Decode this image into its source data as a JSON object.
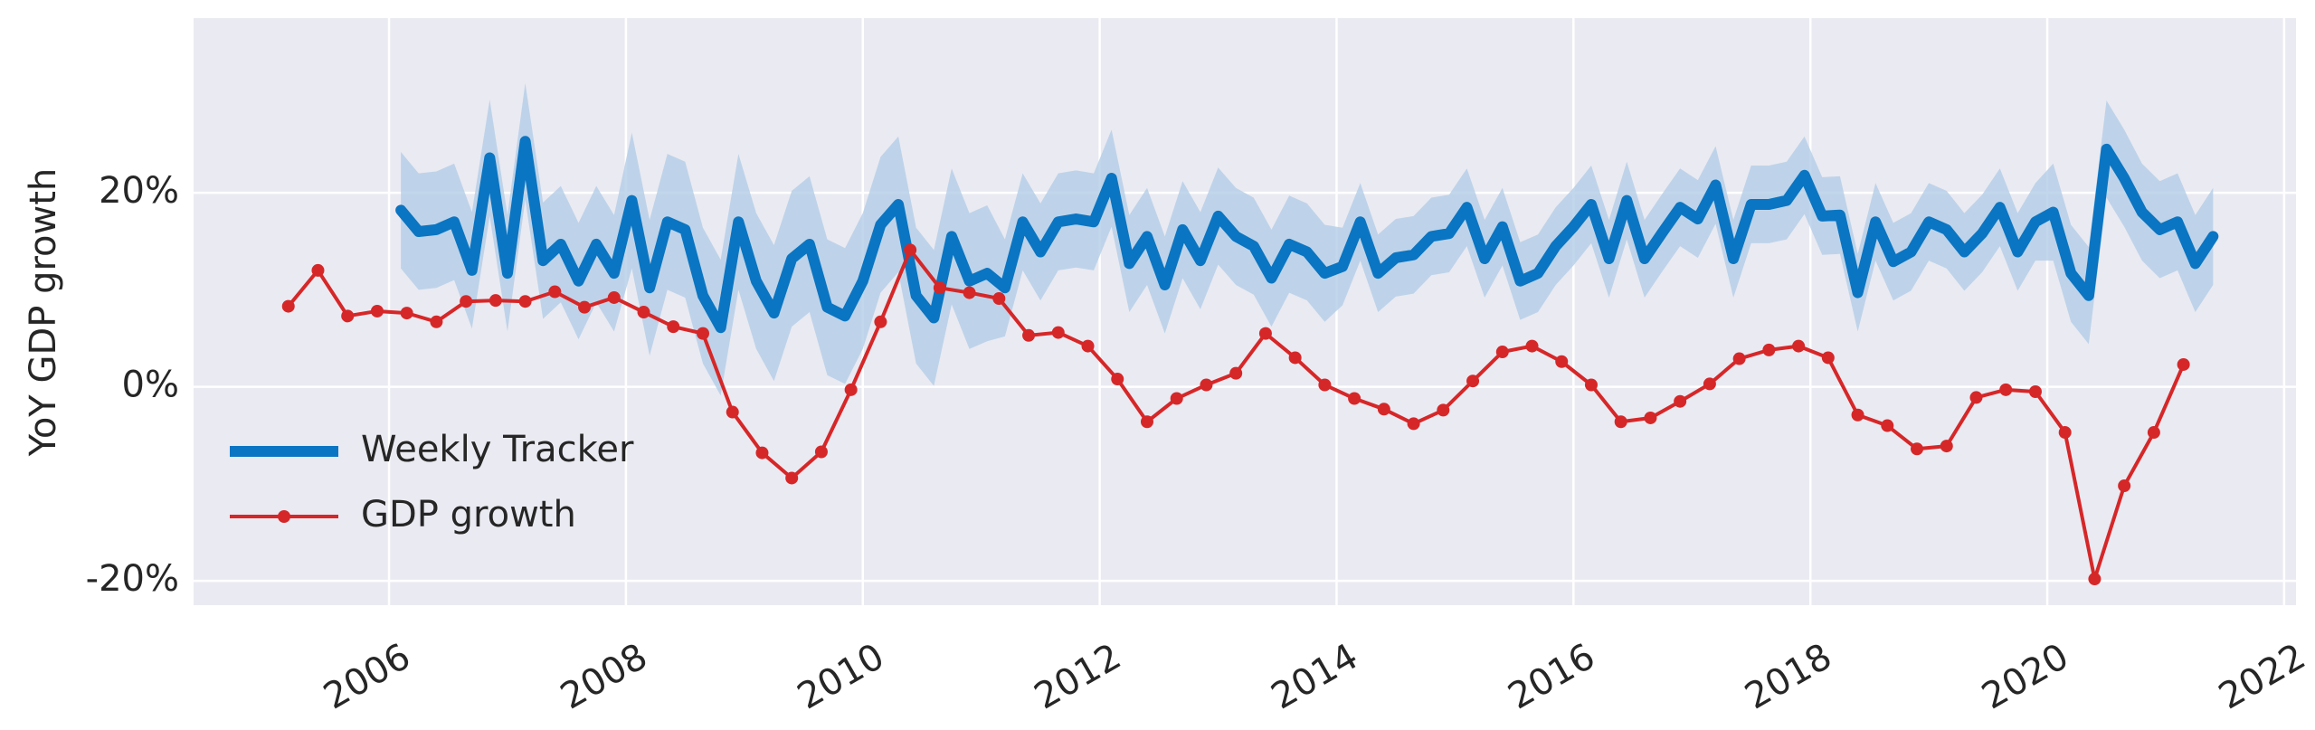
{
  "chart_data": {
    "type": "line",
    "y_label": "YoY GDP growth",
    "xlim": [
      2004.35,
      2022.1
    ],
    "ylim": [
      -22.5,
      38
    ],
    "xticks": [
      2006,
      2008,
      2010,
      2012,
      2014,
      2016,
      2018,
      2020,
      2022
    ],
    "yticks": [
      {
        "value": -20,
        "label": "-20%"
      },
      {
        "value": 0,
        "label": "0%"
      },
      {
        "value": 20,
        "label": "20%"
      }
    ],
    "grid": true,
    "legend": "lower left",
    "series": [
      {
        "name": "Weekly Tracker",
        "color": "#0a75c2",
        "band_color": "#b3cde6",
        "x": [
          2006.1,
          2006.25,
          2006.4,
          2006.55,
          2006.7,
          2006.85,
          2007.0,
          2007.15,
          2007.3,
          2007.45,
          2007.6,
          2007.75,
          2007.9,
          2008.05,
          2008.2,
          2008.35,
          2008.5,
          2008.65,
          2008.8,
          2008.95,
          2009.1,
          2009.25,
          2009.4,
          2009.55,
          2009.7,
          2009.85,
          2010.0,
          2010.15,
          2010.3,
          2010.45,
          2010.6,
          2010.75,
          2010.9,
          2011.05,
          2011.2,
          2011.35,
          2011.5,
          2011.65,
          2011.8,
          2011.95,
          2012.1,
          2012.25,
          2012.4,
          2012.55,
          2012.7,
          2012.85,
          2013.0,
          2013.15,
          2013.3,
          2013.45,
          2013.6,
          2013.75,
          2013.9,
          2014.05,
          2014.2,
          2014.35,
          2014.5,
          2014.65,
          2014.8,
          2014.95,
          2015.1,
          2015.25,
          2015.4,
          2015.55,
          2015.7,
          2015.85,
          2016.0,
          2016.15,
          2016.3,
          2016.45,
          2016.6,
          2016.75,
          2016.9,
          2017.05,
          2017.2,
          2017.35,
          2017.5,
          2017.65,
          2017.8,
          2017.95,
          2018.1,
          2018.25,
          2018.4,
          2018.55,
          2018.7,
          2018.85,
          2019.0,
          2019.15,
          2019.3,
          2019.45,
          2019.6,
          2019.75,
          2019.9,
          2020.05,
          2020.2,
          2020.35,
          2020.5,
          2020.65,
          2020.8,
          2020.95,
          2021.1,
          2021.25,
          2021.4
        ],
        "values": [
          18.2,
          16,
          16.2,
          17,
          12,
          23.6,
          11.7,
          25.3,
          13,
          14.7,
          10.9,
          14.7,
          11.7,
          19.2,
          10.2,
          17,
          16.2,
          9.4,
          6.1,
          17,
          10.9,
          7.6,
          13.2,
          14.7,
          8.2,
          7.3,
          10.9,
          16.7,
          18.8,
          9.4,
          7.1,
          15.5,
          10.9,
          11.7,
          10.2,
          17,
          13.9,
          17,
          17.3,
          17,
          21.5,
          12.7,
          15.5,
          10.5,
          16.2,
          13,
          17.6,
          15.5,
          14.5,
          11.2,
          14.7,
          13.9,
          11.7,
          12.4,
          17,
          11.7,
          13.3,
          13.6,
          15.5,
          15.8,
          18.5,
          13.2,
          16.5,
          10.9,
          11.7,
          14.5,
          16.5,
          18.8,
          13.2,
          19.2,
          13.2,
          15.9,
          18.5,
          17.3,
          20.8,
          13.2,
          18.8,
          18.8,
          19.2,
          21.8,
          17.6,
          17.7,
          9.7,
          17,
          12.9,
          13.9,
          17,
          16.2,
          13.9,
          15.8,
          18.5,
          13.9,
          17,
          18,
          11.7,
          9.4,
          24.5,
          21.5,
          18,
          16.2,
          17,
          12.7,
          15.5
        ],
        "errors": [
          6,
          6,
          6,
          6,
          6,
          6,
          6,
          6,
          6,
          6,
          6,
          6,
          6,
          7,
          7,
          7,
          7,
          7,
          7,
          7,
          7,
          7,
          7,
          7,
          7,
          7,
          7,
          7,
          7,
          7,
          7,
          7,
          7,
          7,
          5,
          5,
          5,
          5,
          5,
          5,
          5,
          5,
          5,
          5,
          5,
          5,
          5,
          5,
          5,
          5,
          5,
          5,
          5,
          4,
          4,
          4,
          4,
          4,
          4,
          4,
          4,
          4,
          4,
          4,
          4,
          4,
          4,
          4,
          4,
          4,
          4,
          4,
          4,
          4,
          4,
          4,
          4,
          4,
          4,
          4,
          4,
          4,
          4,
          4,
          4,
          4,
          4,
          4,
          4,
          4,
          4,
          4,
          4,
          5,
          5,
          5,
          5,
          5,
          5,
          5,
          5,
          5,
          5
        ]
      },
      {
        "name": "GDP growth",
        "color": "#d62728",
        "markers": true,
        "x": [
          2005.15,
          2005.4,
          2005.65,
          2005.9,
          2006.15,
          2006.4,
          2006.65,
          2006.9,
          2007.15,
          2007.4,
          2007.65,
          2007.9,
          2008.15,
          2008.4,
          2008.65,
          2008.9,
          2009.15,
          2009.4,
          2009.65,
          2009.9,
          2010.15,
          2010.4,
          2010.65,
          2010.9,
          2011.15,
          2011.4,
          2011.65,
          2011.9,
          2012.15,
          2012.4,
          2012.65,
          2012.9,
          2013.15,
          2013.4,
          2013.65,
          2013.9,
          2014.15,
          2014.4,
          2014.65,
          2014.9,
          2015.15,
          2015.4,
          2015.65,
          2015.9,
          2016.15,
          2016.4,
          2016.65,
          2016.9,
          2017.15,
          2017.4,
          2017.65,
          2017.9,
          2018.15,
          2018.4,
          2018.65,
          2018.9,
          2019.15,
          2019.4,
          2019.65,
          2019.9,
          2020.15,
          2020.4,
          2020.65,
          2020.9,
          2021.15
        ],
        "values": [
          8.3,
          12.0,
          7.3,
          7.8,
          7.6,
          6.7,
          8.8,
          8.9,
          8.8,
          9.8,
          8.2,
          9.2,
          7.7,
          6.2,
          5.5,
          -2.6,
          -6.8,
          -9.4,
          -6.7,
          -0.3,
          6.7,
          14.1,
          10.2,
          9.7,
          9.1,
          5.3,
          5.6,
          4.2,
          0.8,
          -3.6,
          -1.2,
          0.2,
          1.4,
          5.5,
          3.0,
          0.2,
          -1.2,
          -2.3,
          -3.8,
          -2.4,
          0.6,
          3.6,
          4.2,
          2.6,
          0.2,
          -3.6,
          -3.2,
          -1.5,
          0.3,
          2.9,
          3.8,
          4.2,
          3.0,
          -2.9,
          -4.0,
          -6.4,
          -6.1,
          -1.1,
          -0.3,
          -0.5,
          -4.7,
          -19.8,
          -10.2,
          -4.7,
          2.3
        ]
      }
    ]
  }
}
